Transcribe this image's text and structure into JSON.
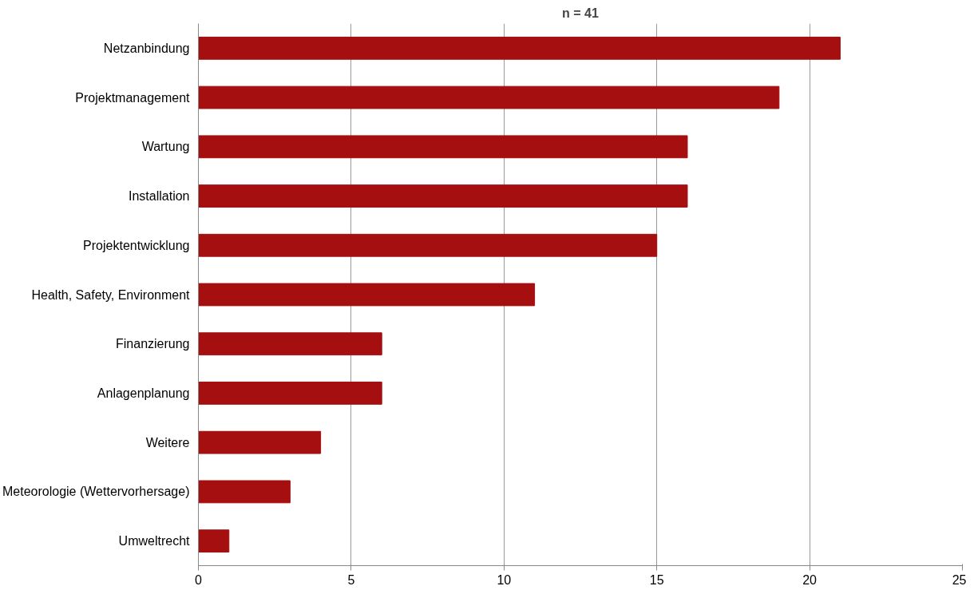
{
  "chart_data": {
    "type": "bar",
    "orientation": "horizontal",
    "title": "n = 41",
    "categories": [
      "Netzanbindung",
      "Projektmanagement",
      "Wartung",
      "Installation",
      "Projektentwicklung",
      "Health, Safety, Environment",
      "Finanzierung",
      "Anlagenplanung",
      "Weitere",
      "Meteorologie (Wettervorhersage)",
      "Umweltrecht"
    ],
    "values": [
      21,
      19,
      16,
      16,
      15,
      11,
      6,
      6,
      4,
      3,
      1
    ],
    "color": "#a50f0f",
    "xlim": [
      0,
      25
    ],
    "xticks": [
      0,
      5,
      10,
      15,
      20,
      25
    ],
    "grid": "x"
  }
}
